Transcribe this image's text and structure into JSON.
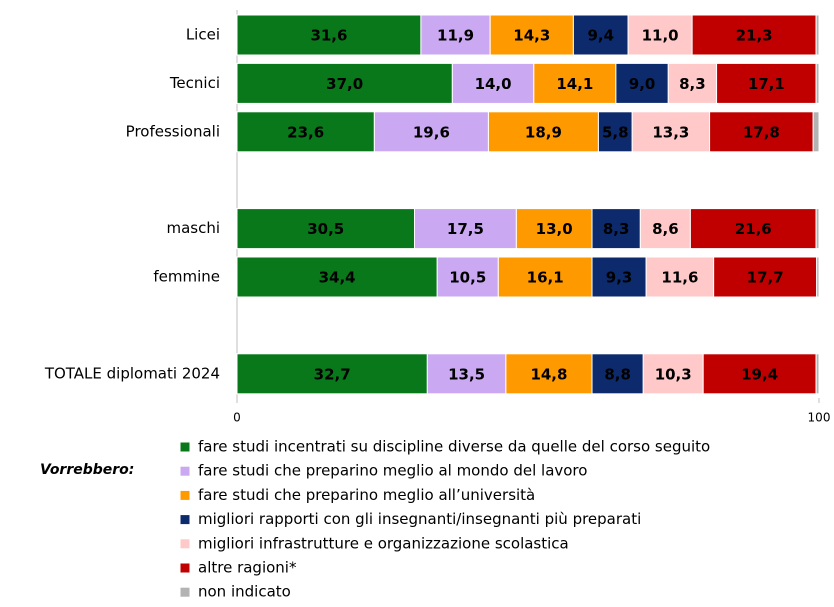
{
  "chart_data": {
    "type": "stacked-barh",
    "categories": [
      "Licei",
      "Tecnici",
      "Professionali",
      null,
      "maschi",
      "femmine",
      null,
      "TOTALE diplomati 2024"
    ],
    "series": [
      {
        "name": "fare studi incentrati su discipline diverse da quelle del corso seguito",
        "color": "#08781a",
        "values": [
          31.6,
          37.0,
          23.6,
          null,
          30.5,
          34.4,
          null,
          32.7
        ],
        "value_labels": [
          "31,6",
          "37,0",
          "23,6",
          null,
          "30,5",
          "34,4",
          null,
          "32,7"
        ]
      },
      {
        "name": "fare studi che preparino meglio al mondo del lavoro",
        "color": "#caa8f2",
        "values": [
          11.9,
          14.0,
          19.6,
          null,
          17.5,
          10.5,
          null,
          13.5
        ],
        "value_labels": [
          "11,9",
          "14,0",
          "19,6",
          null,
          "17,5",
          "10,5",
          null,
          "13,5"
        ]
      },
      {
        "name": "fare studi che preparino meglio all’università",
        "color": "#ff9900",
        "values": [
          14.3,
          14.1,
          18.9,
          null,
          13.0,
          16.1,
          null,
          14.8
        ],
        "value_labels": [
          "14,3",
          "14,1",
          "18,9",
          null,
          "13,0",
          "16,1",
          null,
          "14,8"
        ]
      },
      {
        "name": "migliori rapporti con gli insegnanti/insegnanti più preparati",
        "color": "#0c2a6c",
        "values": [
          9.4,
          9.0,
          5.8,
          null,
          8.3,
          9.3,
          null,
          8.8
        ],
        "value_labels": [
          "9,4",
          "9,0",
          "5,8",
          null,
          "8,3",
          "9,3",
          null,
          "8,8"
        ]
      },
      {
        "name": "migliori infrastrutture e organizzazione scolastica",
        "color": "#ffc9c9",
        "values": [
          11.0,
          8.3,
          13.3,
          null,
          8.6,
          11.6,
          null,
          10.3
        ],
        "value_labels": [
          "11,0",
          "8,3",
          "13,3",
          null,
          "8,6",
          "11,6",
          null,
          "10,3"
        ]
      },
      {
        "name": "altre ragioni*",
        "color": "#c00000",
        "values": [
          21.3,
          17.1,
          17.8,
          null,
          21.6,
          17.7,
          null,
          19.4
        ],
        "value_labels": [
          "21,3",
          "17,1",
          "17,8",
          null,
          "21,6",
          "17,7",
          null,
          "19,4"
        ]
      },
      {
        "name": "non indicato",
        "color": "#b3b3b3",
        "values": [
          0.5,
          0.5,
          1.0,
          null,
          0.5,
          0.4,
          null,
          0.5
        ]
      }
    ],
    "legend_title": "Vorrebbero:",
    "xlim": [
      0,
      100
    ],
    "xticks": [
      0,
      100
    ]
  }
}
